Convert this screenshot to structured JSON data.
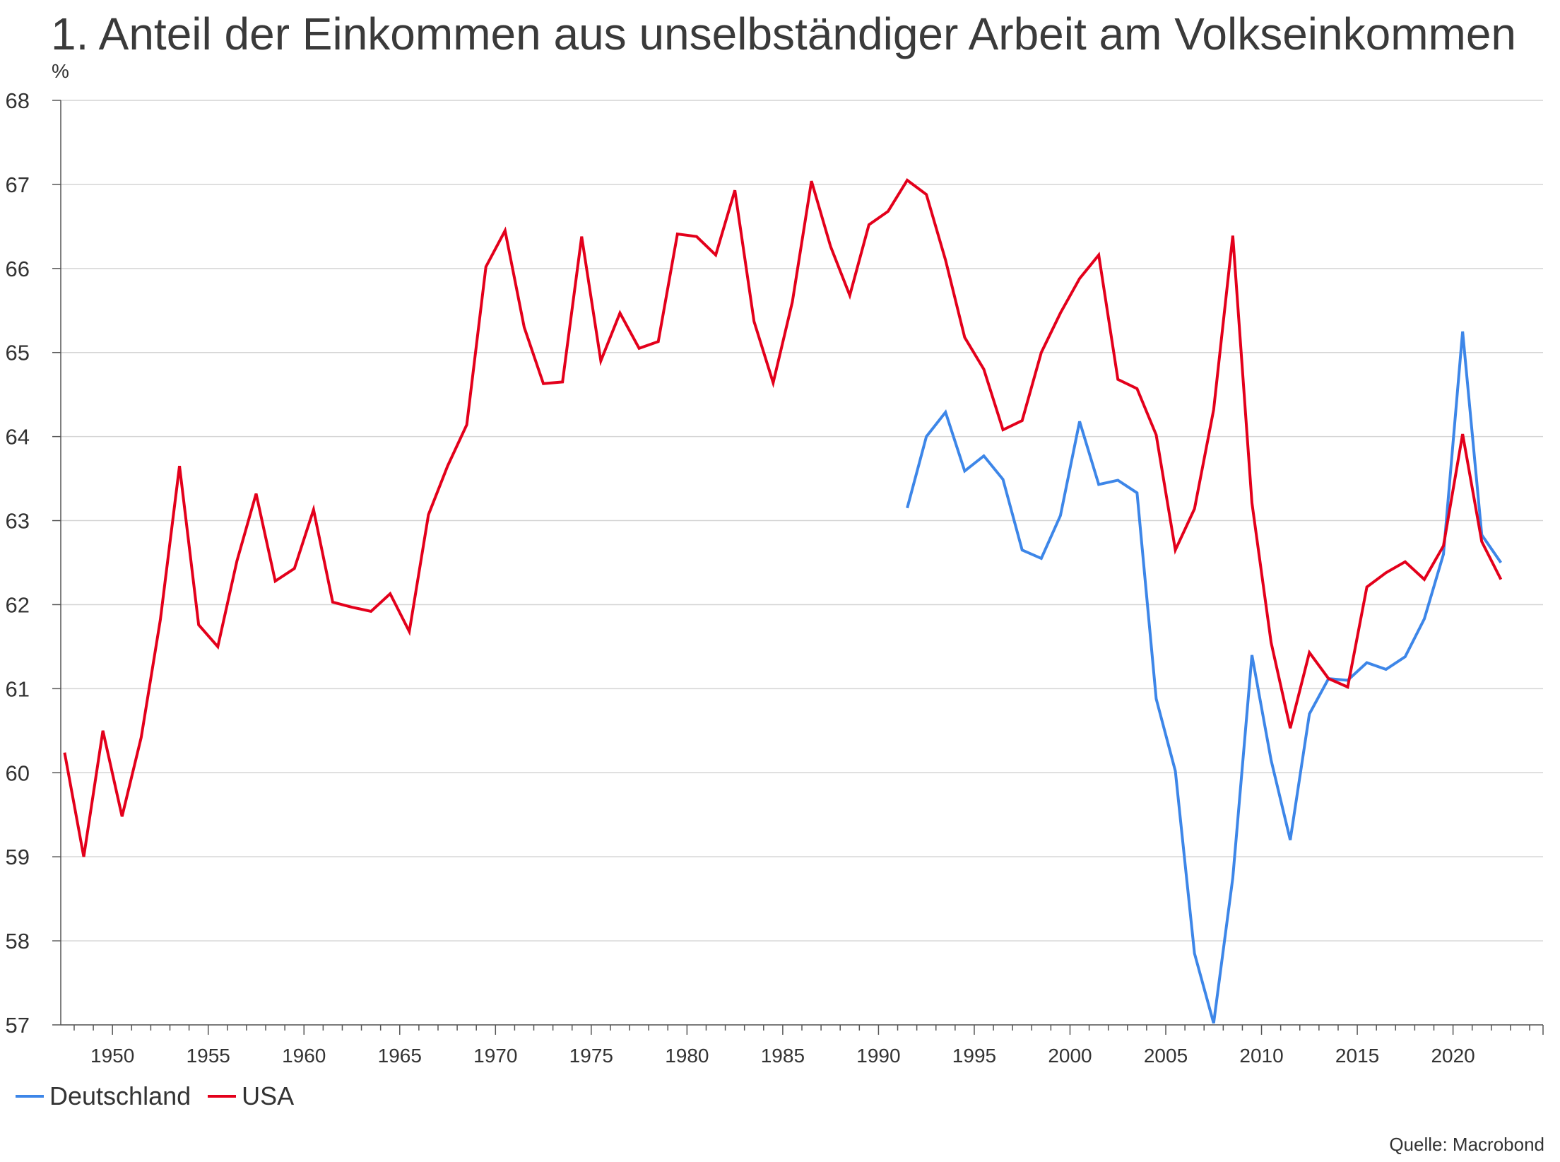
{
  "chart_data": {
    "type": "line",
    "title": "1. Anteil der Einkommen aus unselbständiger Arbeit am Volkseinkommen",
    "ylabel": "%",
    "xlabel": "",
    "source": "Quelle: Macrobond",
    "xlim": [
      1947.3,
      2024.7
    ],
    "ylim": [
      57,
      68
    ],
    "y_ticks": [
      "57",
      "58",
      "59",
      "60",
      "61",
      "62",
      "63",
      "64",
      "65",
      "66",
      "67",
      "68"
    ],
    "x_ticks": [
      "1950",
      "1955",
      "1960",
      "1965",
      "1970",
      "1975",
      "1980",
      "1985",
      "1990",
      "1995",
      "2000",
      "2005",
      "2010",
      "2015",
      "2020"
    ],
    "grid": "horizontal",
    "legend": "bottom-left",
    "series": [
      {
        "name": "Deutschland",
        "color": "#3d86e8",
        "x": [
          1991,
          1992,
          1993,
          1994,
          1995,
          1996,
          1997,
          1998,
          1999,
          2000,
          2001,
          2002,
          2003,
          2004,
          2005,
          2006,
          2007,
          2008,
          2009,
          2010,
          2011,
          2012,
          2013,
          2014,
          2015,
          2016,
          2017,
          2018,
          2019,
          2020,
          2021,
          2022
        ],
        "values": [
          63.15,
          64.0,
          64.29,
          63.59,
          63.77,
          63.49,
          62.65,
          62.55,
          63.06,
          64.18,
          63.43,
          63.48,
          63.33,
          60.88,
          60.02,
          57.85,
          57.02,
          58.75,
          61.4,
          60.15,
          59.2,
          60.7,
          61.12,
          61.1,
          61.31,
          61.23,
          61.38,
          61.83,
          62.6,
          65.25,
          62.83,
          62.5
        ]
      },
      {
        "name": "USA",
        "color": "#e3001b",
        "x": [
          1947,
          1948,
          1949,
          1950,
          1951,
          1952,
          1953,
          1954,
          1955,
          1956,
          1957,
          1958,
          1959,
          1960,
          1961,
          1962,
          1963,
          1964,
          1965,
          1966,
          1967,
          1968,
          1969,
          1970,
          1971,
          1972,
          1973,
          1974,
          1975,
          1976,
          1977,
          1978,
          1979,
          1980,
          1981,
          1982,
          1983,
          1984,
          1985,
          1986,
          1987,
          1988,
          1989,
          1990,
          1991,
          1992,
          1993,
          1994,
          1995,
          1996,
          1997,
          1998,
          1999,
          2000,
          2001,
          2002,
          2003,
          2004,
          2005,
          2006,
          2007,
          2008,
          2009,
          2010,
          2011,
          2012,
          2013,
          2014,
          2015,
          2016,
          2017,
          2018,
          2019,
          2020,
          2021,
          2022
        ],
        "values": [
          60.24,
          59.0,
          60.5,
          59.48,
          60.42,
          61.82,
          63.65,
          61.76,
          61.5,
          62.52,
          63.32,
          62.28,
          62.43,
          63.13,
          62.03,
          61.97,
          61.92,
          62.13,
          61.68,
          63.07,
          63.65,
          64.14,
          66.02,
          66.45,
          65.3,
          64.63,
          64.65,
          66.38,
          64.9,
          65.47,
          65.05,
          65.13,
          66.41,
          66.38,
          66.16,
          66.93,
          65.37,
          64.64,
          65.6,
          67.04,
          66.26,
          65.68,
          66.52,
          66.68,
          67.05,
          66.88,
          66.1,
          65.18,
          64.8,
          64.08,
          64.19,
          65.0,
          65.47,
          65.88,
          66.16,
          64.68,
          64.57,
          64.02,
          62.65,
          63.14,
          64.32,
          66.39,
          63.21,
          61.55,
          60.53,
          61.43,
          61.12,
          61.02,
          62.21,
          62.38,
          62.51,
          62.3,
          62.7,
          64.03,
          62.75,
          62.3
        ]
      }
    ]
  }
}
